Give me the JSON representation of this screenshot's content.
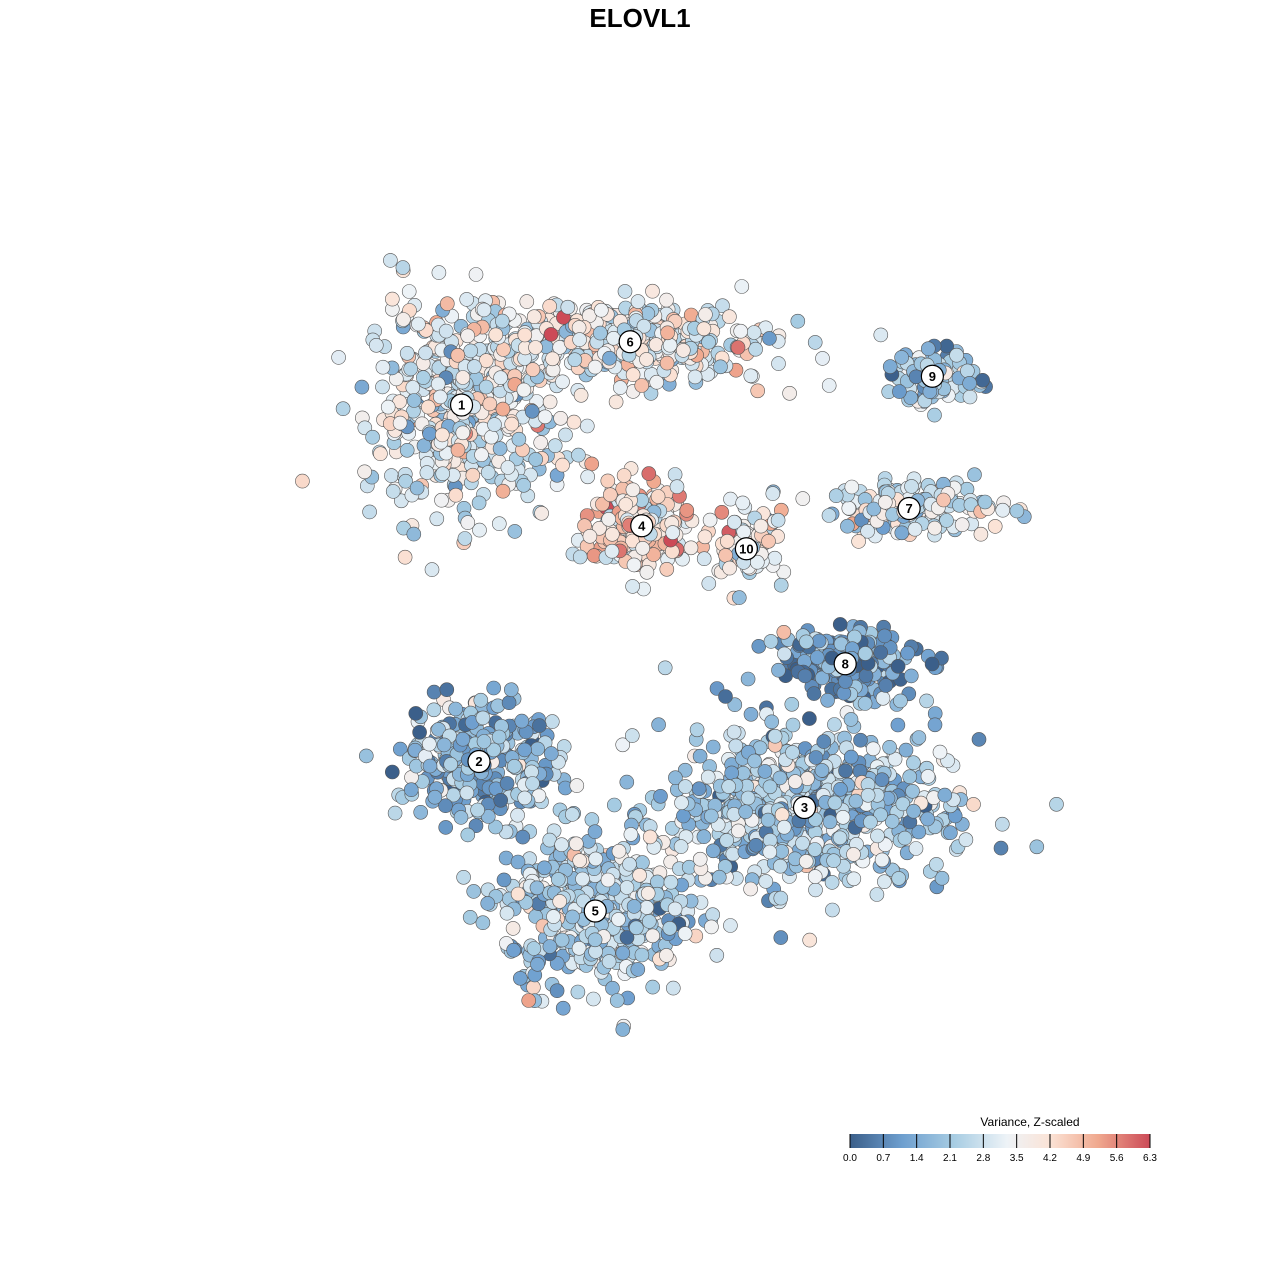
{
  "chart_data": {
    "type": "scatter",
    "title": "ELOVL1",
    "xlim": [
      -40,
      40
    ],
    "ylim": [
      -40,
      40
    ],
    "grid": false,
    "axes_visible": false,
    "point_stroke_color": "#555555",
    "color_scale": {
      "title": "Variance, Z-scaled",
      "min": 0.0,
      "max": 6.3,
      "ticks": [
        "0.0",
        "0.7",
        "1.4",
        "2.1",
        "2.8",
        "3.5",
        "4.2",
        "4.9",
        "5.6",
        "6.3"
      ],
      "stops": [
        {
          "v": 0.0,
          "color": "#3b5f8a"
        },
        {
          "v": 1.1,
          "color": "#6e9fcf"
        },
        {
          "v": 2.2,
          "color": "#a8cde3"
        },
        {
          "v": 3.3,
          "color": "#eef3f7"
        },
        {
          "v": 4.2,
          "color": "#fbe3d6"
        },
        {
          "v": 5.2,
          "color": "#f0a98f"
        },
        {
          "v": 6.3,
          "color": "#cc4a57"
        }
      ],
      "placement": "bottom-right"
    },
    "clusters": [
      {
        "id": "1",
        "label": "1",
        "x": -17.5,
        "y": 20.0,
        "value": 3.1,
        "sx": 7.5,
        "sy": 8.0,
        "n": 520
      },
      {
        "id": "6",
        "label": "6",
        "x": -3.0,
        "y": 25.5,
        "value": 3.3,
        "sx": 11.0,
        "sy": 3.2,
        "n": 420
      },
      {
        "id": "9",
        "label": "9",
        "x": 23.0,
        "y": 22.5,
        "value": 2.0,
        "sx": 3.5,
        "sy": 2.0,
        "n": 110
      },
      {
        "id": "7",
        "label": "7",
        "x": 21.0,
        "y": 11.0,
        "value": 3.0,
        "sx": 7.0,
        "sy": 2.2,
        "n": 170
      },
      {
        "id": "4",
        "label": "4",
        "x": -2.0,
        "y": 9.5,
        "value": 4.0,
        "sx": 4.2,
        "sy": 3.5,
        "n": 240
      },
      {
        "id": "10",
        "label": "10",
        "x": 7.0,
        "y": 7.5,
        "value": 3.6,
        "sx": 2.8,
        "sy": 3.2,
        "n": 90
      },
      {
        "id": "8",
        "label": "8",
        "x": 15.5,
        "y": -2.5,
        "value": 1.0,
        "sx": 5.5,
        "sy": 2.6,
        "n": 230
      },
      {
        "id": "2",
        "label": "2",
        "x": -16.0,
        "y": -11.0,
        "value": 1.9,
        "sx": 6.0,
        "sy": 4.8,
        "n": 300
      },
      {
        "id": "3",
        "label": "3",
        "x": 12.0,
        "y": -15.0,
        "value": 2.2,
        "sx": 11.0,
        "sy": 6.2,
        "n": 700
      },
      {
        "id": "5",
        "label": "5",
        "x": -6.0,
        "y": -24.0,
        "value": 2.4,
        "sx": 7.0,
        "sy": 6.0,
        "n": 520
      }
    ]
  }
}
